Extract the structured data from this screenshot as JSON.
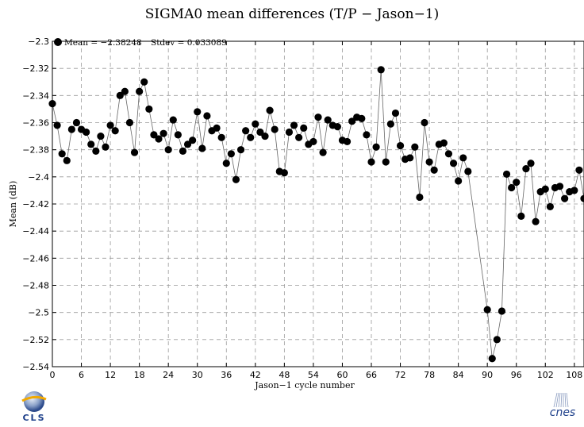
{
  "chart_data": {
    "type": "scatter",
    "title": "SIGMA0 mean differences (T/P − Jason−1)",
    "xlabel": "Jason−1 cycle number",
    "ylabel": "Mean (dB)",
    "xlim": [
      0,
      110
    ],
    "ylim": [
      -2.54,
      -2.3
    ],
    "x_ticks": [
      0,
      6,
      12,
      18,
      24,
      30,
      36,
      42,
      48,
      54,
      60,
      66,
      72,
      78,
      84,
      90,
      96,
      102,
      108
    ],
    "x_tick_labels": [
      "0",
      "6",
      "12",
      "18",
      "24",
      "30",
      "36",
      "42",
      "48",
      "54",
      "60",
      "66",
      "72",
      "78",
      "84",
      "90",
      "96",
      "102",
      "108"
    ],
    "y_ticks": [
      -2.3,
      -2.32,
      -2.34,
      -2.36,
      -2.38,
      -2.4,
      -2.42,
      -2.44,
      -2.46,
      -2.48,
      -2.5,
      -2.52,
      -2.54
    ],
    "y_tick_labels": [
      "−2.3",
      "−2.32",
      "−2.34",
      "−2.36",
      "−2.38",
      "−2.4",
      "−2.42",
      "−2.44",
      "−2.46",
      "−2.48",
      "−2.5",
      "−2.52",
      "−2.54"
    ],
    "grid": true,
    "legend_position": "top-left",
    "legend_mean": "Mean = −2.38248",
    "legend_stdev": "Stdev = 0.033089",
    "marker_color": "#000000",
    "line_color": "#666666",
    "series": [
      {
        "x": [
          0,
          1,
          2,
          3,
          4,
          5,
          6,
          7,
          8,
          9,
          10,
          11,
          12,
          13,
          14,
          15,
          16,
          17,
          18,
          19,
          20,
          21,
          22,
          23,
          24,
          25,
          26,
          27,
          28,
          29,
          30,
          31,
          32,
          33,
          34,
          35,
          36,
          37,
          38,
          39,
          40,
          41,
          42,
          43,
          44,
          45,
          46,
          47,
          48,
          49,
          50,
          51,
          52,
          53,
          54,
          55,
          56,
          57,
          58,
          59,
          60,
          61,
          62,
          63,
          64,
          65,
          66,
          67,
          68,
          69,
          70,
          71,
          72,
          73,
          74,
          75,
          76,
          77,
          78,
          79,
          80,
          81,
          82,
          83,
          84,
          85,
          86,
          87,
          88,
          89,
          90,
          91,
          92,
          93,
          94,
          95,
          96,
          97,
          98,
          99,
          100,
          101,
          102,
          103,
          104,
          105,
          106,
          107,
          108,
          109,
          110
        ],
        "y": [
          -2.346,
          -2.362,
          -2.383,
          -2.388,
          -2.365,
          -2.36,
          -2.365,
          -2.367,
          -2.376,
          -2.381,
          -2.37,
          -2.378,
          -2.362,
          -2.366,
          -2.34,
          -2.337,
          -2.36,
          -2.382,
          -2.337,
          -2.33,
          -2.35,
          -2.369,
          -2.372,
          -2.368,
          -2.38,
          -2.358,
          -2.369,
          -2.381,
          -2.376,
          -2.373,
          -2.352,
          -2.379,
          -2.355,
          -2.366,
          -2.364,
          -2.371,
          -2.39,
          -2.383,
          -2.402,
          -2.38,
          -2.366,
          -2.371,
          -2.361,
          -2.367,
          -2.37,
          -2.351,
          -2.365,
          -2.396,
          -2.397,
          -2.367,
          -2.362,
          -2.371,
          -2.364,
          -2.376,
          -2.374,
          -2.356,
          -2.382,
          -2.358,
          -2.362,
          -2.363,
          -2.373,
          -2.374,
          -2.359,
          -2.356,
          -2.357,
          -2.369,
          -2.389,
          -2.378,
          -2.321,
          -2.389,
          -2.361,
          -2.353,
          -2.377,
          -2.387,
          -2.386,
          -2.378,
          -2.415,
          -2.36,
          -2.389,
          -2.395,
          -2.376,
          -2.375,
          -2.383,
          -2.39,
          -2.403,
          -2.386,
          -2.396,
          null,
          null,
          null,
          -2.498,
          -2.534,
          -2.52,
          -2.499,
          -2.398,
          -2.408,
          -2.404,
          -2.429,
          -2.394,
          -2.39,
          -2.433,
          -2.411,
          -2.409,
          -2.422,
          -2.408,
          -2.407,
          -2.416,
          -2.411,
          -2.41,
          -2.395,
          -2.416
        ]
      }
    ]
  },
  "logos": {
    "left": {
      "text": "CLS",
      "icon": "cls-globe-icon"
    },
    "right": {
      "text": "cnes",
      "icon": "cnes-logo-icon"
    }
  }
}
